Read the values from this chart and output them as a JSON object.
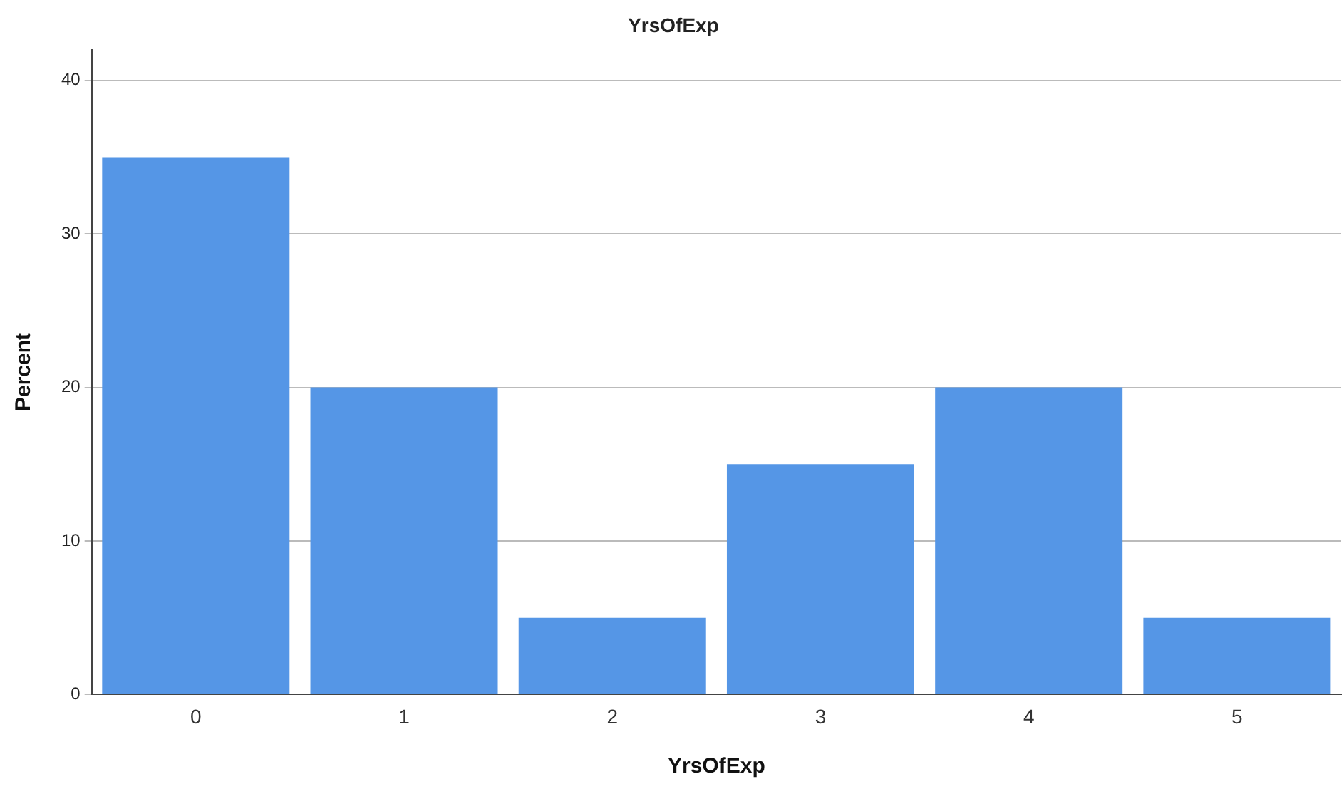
{
  "chart_data": {
    "type": "bar",
    "title": "YrsOfExp",
    "xlabel": "YrsOfExp",
    "ylabel": "Percent",
    "categories": [
      "0",
      "1",
      "2",
      "3",
      "4",
      "5"
    ],
    "values": [
      35,
      20,
      5,
      15,
      20,
      5
    ],
    "color": "#5596e6",
    "ylim": [
      0,
      42
    ],
    "yticks": [
      0,
      10,
      20,
      30,
      40
    ],
    "grid": "y",
    "legend": false
  }
}
